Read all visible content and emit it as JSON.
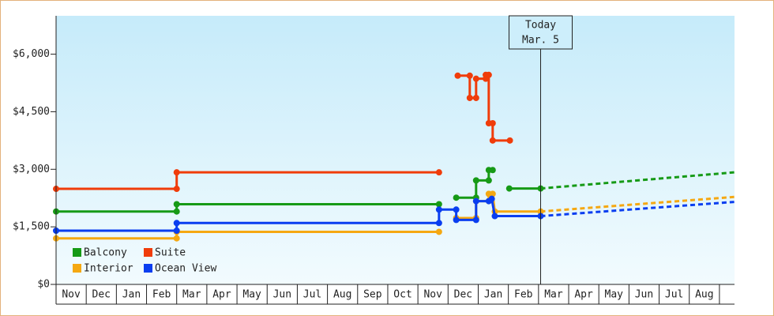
{
  "chart_data": {
    "type": "line",
    "step": true,
    "categories": [
      "Nov",
      "Dec",
      "Jan",
      "Feb",
      "Mar",
      "Apr",
      "May",
      "Jun",
      "Jul",
      "Aug",
      "Sep",
      "Oct",
      "Nov",
      "Dec",
      "Jan",
      "Feb",
      "Mar",
      "Apr",
      "May",
      "Jun",
      "Jul",
      "Aug"
    ],
    "xlim": [
      0,
      22.5
    ],
    "ylim": [
      0,
      7000
    ],
    "yticks": [
      {
        "value": 0,
        "label": "$0"
      },
      {
        "value": 1500,
        "label": "$1,500"
      },
      {
        "value": 3000,
        "label": "$3,000"
      },
      {
        "value": 4500,
        "label": "$4,500"
      },
      {
        "value": 6000,
        "label": "$6,000"
      }
    ],
    "today": {
      "x": 16.07,
      "label": "Today",
      "date": "Mar. 5"
    },
    "legend": "bottom-left",
    "series": [
      {
        "name": "Balcony",
        "color": "#169a16",
        "x": [
          0,
          4,
          4,
          12.7,
          null,
          13.27,
          13.93,
          13.93,
          14.35,
          14.35,
          14.48,
          null,
          15.03,
          16.07
        ],
        "values": [
          1900,
          1900,
          2090,
          2090,
          null,
          2260,
          2260,
          2710,
          2710,
          2980,
          2980,
          null,
          2500,
          2500
        ],
        "forecast_x": [
          16.07,
          22.49
        ],
        "forecast_values": [
          2500,
          2920
        ]
      },
      {
        "name": "Suite",
        "color": "#f03c0a",
        "x": [
          0,
          4,
          4,
          12.7,
          null,
          13.32,
          13.72,
          13.72,
          13.93,
          13.93,
          14.25,
          14.25,
          14.35,
          14.35,
          14.48,
          14.48,
          15.05
        ],
        "values": [
          2490,
          2490,
          2920,
          2920,
          null,
          5440,
          5440,
          4860,
          4860,
          5360,
          5360,
          5460,
          5460,
          4200,
          4200,
          3750,
          3750
        ]
      },
      {
        "name": "Interior",
        "color": "#f5a812",
        "x": [
          0,
          4,
          4,
          12.7,
          null,
          13.27,
          13.93,
          13.93,
          14.35,
          14.35,
          14.48,
          14.55,
          16.07
        ],
        "values": [
          1200,
          1200,
          1370,
          1370,
          null,
          1730,
          1730,
          2170,
          2170,
          2360,
          2360,
          1900,
          1900
        ],
        "forecast_x": [
          16.07,
          22.49
        ],
        "forecast_values": [
          1900,
          2280
        ]
      },
      {
        "name": "Ocean View",
        "color": "#0a3ef0",
        "x": [
          0,
          4,
          4,
          12.7,
          12.7,
          13.27,
          13.27,
          13.93,
          13.93,
          14.35,
          14.45,
          14.55,
          16.07
        ],
        "values": [
          1400,
          1400,
          1600,
          1600,
          1950,
          1950,
          1680,
          1680,
          2170,
          2170,
          2230,
          1780,
          1780
        ],
        "forecast_x": [
          16.07,
          22.49
        ],
        "forecast_values": [
          1780,
          2150
        ]
      }
    ]
  }
}
